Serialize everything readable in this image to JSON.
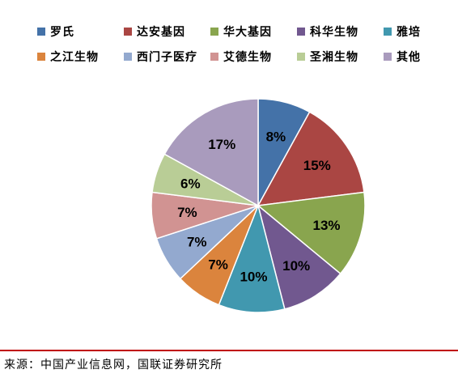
{
  "chart_data": {
    "type": "pie",
    "categories": [
      "罗氏",
      "达安基因",
      "华大基因",
      "科华生物",
      "雅培",
      "之江生物",
      "西门子医疗",
      "艾德生物",
      "圣湘生物",
      "其他"
    ],
    "values": [
      8,
      15,
      13,
      10,
      10,
      7,
      7,
      7,
      6,
      17
    ],
    "labels": [
      "8%",
      "15%",
      "13%",
      "10%",
      "10%",
      "7%",
      "7%",
      "7%",
      "6%",
      "17%"
    ],
    "colors": [
      "#4472a8",
      "#aa4643",
      "#89a54e",
      "#71588f",
      "#4198af",
      "#db843d",
      "#93a9cf",
      "#d19392",
      "#b9cd96",
      "#a99bbd"
    ],
    "legend_position": "top",
    "start_angle": "12 o'clock, clockwise"
  },
  "source_text": "来源：中国产业信息网，国联证券研究所"
}
